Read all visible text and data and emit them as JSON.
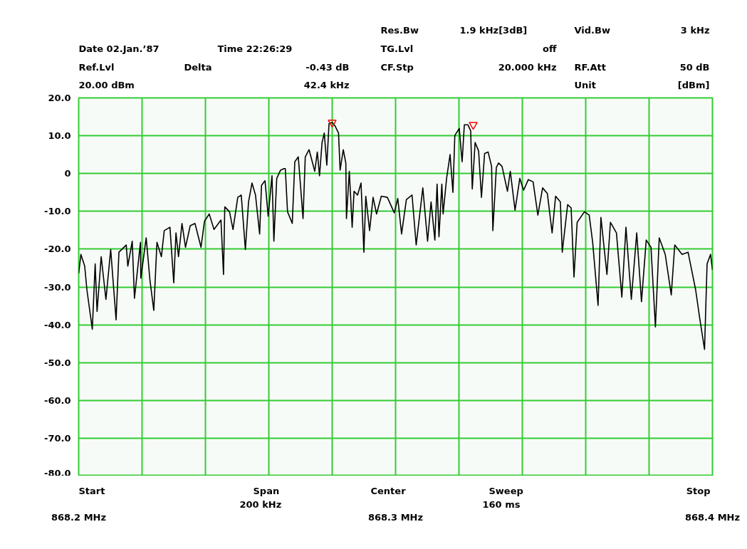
{
  "chart_data": {
    "type": "line",
    "xlim": [
      868.2,
      868.4
    ],
    "xticks": [
      {
        "value": 868.2,
        "label": "868.2 MHz"
      },
      {
        "value": 868.22,
        "label": null
      },
      {
        "value": 868.24,
        "label": null
      },
      {
        "value": 868.26,
        "label": null
      },
      {
        "value": 868.28,
        "label": null
      },
      {
        "value": 868.3,
        "label": "868.3 MHz"
      },
      {
        "value": 868.32,
        "label": null
      },
      {
        "value": 868.34,
        "label": null
      },
      {
        "value": 868.36,
        "label": null
      },
      {
        "value": 868.38,
        "label": null
      },
      {
        "value": 868.4,
        "label": "868.4 MHz"
      }
    ],
    "ylim": [
      -80,
      20
    ],
    "yticks": [
      {
        "value": 20,
        "label": "20.0"
      },
      {
        "value": 10,
        "label": "10.0"
      },
      {
        "value": 0,
        "label": "0"
      },
      {
        "value": -10,
        "label": "-10.0"
      },
      {
        "value": -20,
        "label": "-20.0"
      },
      {
        "value": -30,
        "label": "-30.0"
      },
      {
        "value": -40,
        "label": "-40.0"
      },
      {
        "value": -50,
        "label": "-50.0"
      },
      {
        "value": -60,
        "label": "-60.0"
      },
      {
        "value": -70,
        "label": "-70.0"
      },
      {
        "value": -80,
        "label": "-80.0"
      }
    ],
    "grid": true,
    "series": [
      {
        "color": "#000000",
        "x": [
          868.2,
          868.2007,
          868.2019,
          868.2026,
          868.2043,
          868.2052,
          868.2058,
          868.2071,
          868.2086,
          868.2101,
          868.2118,
          868.2127,
          868.215,
          868.2155,
          868.2169,
          868.2176,
          868.2195,
          868.2196,
          868.2213,
          868.2225,
          868.2237,
          868.2247,
          868.2261,
          868.227,
          868.2288,
          868.23,
          868.2307,
          868.2315,
          868.2326,
          868.2337,
          868.2352,
          868.2367,
          868.2386,
          868.2397,
          868.2412,
          868.2427,
          868.2449,
          868.2457,
          868.2461,
          868.2476,
          868.2487,
          868.2502,
          868.2513,
          868.2526,
          868.2536,
          868.2547,
          868.2558,
          868.2571,
          868.2577,
          868.2588,
          868.2598,
          868.261,
          868.2616,
          868.2625,
          868.2637,
          868.2648,
          868.2652,
          868.2659,
          868.2674,
          868.2682,
          868.2693,
          868.2708,
          868.2715,
          868.2727,
          868.2745,
          868.2753,
          868.276,
          868.2768,
          868.2775,
          868.2783,
          868.279,
          868.28,
          868.2809,
          868.282,
          868.2825,
          868.2835,
          868.2843,
          868.2845,
          868.2854,
          868.2863,
          868.2869,
          868.288,
          868.2891,
          868.29,
          868.2906,
          868.2918,
          868.2929,
          868.294,
          868.2955,
          868.2974,
          868.2996,
          868.3007,
          868.3019,
          868.3034,
          868.3052,
          868.3065,
          868.3086,
          868.3101,
          868.3112,
          868.3124,
          868.3131,
          868.3137,
          868.3146,
          868.315,
          868.3161,
          868.3172,
          868.3181,
          868.3187,
          868.3201,
          868.3206,
          868.321,
          868.3217,
          868.3228,
          868.3237,
          868.3242,
          868.3251,
          868.3262,
          868.3271,
          868.3281,
          868.3292,
          868.3303,
          868.3307,
          868.3318,
          868.3325,
          868.3336,
          868.3353,
          868.3362,
          868.3377,
          868.3392,
          868.3404,
          868.3419,
          868.3434,
          868.3449,
          868.3464,
          868.3479,
          868.3494,
          868.3505,
          868.352,
          868.3526,
          868.3543,
          868.3554,
          868.3563,
          868.3573,
          868.3596,
          868.3611,
          868.3622,
          868.3639,
          868.3648,
          868.3667,
          868.3678,
          868.3697,
          868.3714,
          868.3727,
          868.3744,
          868.3761,
          868.3776,
          868.3791,
          868.3806,
          868.382,
          868.3832,
          868.3851,
          868.387,
          868.3881,
          868.3904,
          868.3923,
          868.3947,
          868.396,
          868.3975,
          868.3983,
          868.3994,
          868.4
        ],
        "values": [
          -26.4,
          -21.4,
          -24.5,
          -30.8,
          -41.2,
          -23.9,
          -36.5,
          -22.0,
          -33.3,
          -20.1,
          -38.7,
          -20.8,
          -18.9,
          -24.5,
          -17.9,
          -33.0,
          -18.2,
          -27.7,
          -17.0,
          -28.3,
          -36.2,
          -18.2,
          -22.0,
          -15.1,
          -14.2,
          -28.9,
          -15.7,
          -22.0,
          -13.2,
          -19.5,
          -13.8,
          -13.2,
          -19.5,
          -12.6,
          -10.7,
          -14.8,
          -12.3,
          -26.7,
          -8.8,
          -10.1,
          -14.8,
          -6.3,
          -5.7,
          -20.1,
          -7.5,
          -2.5,
          -5.7,
          -16.0,
          -3.1,
          -1.9,
          -11.3,
          -0.6,
          -17.9,
          -1.3,
          0.9,
          1.3,
          1.3,
          -10.1,
          -13.2,
          3.1,
          4.4,
          -11.9,
          4.4,
          6.3,
          0.6,
          5.7,
          -0.6,
          8.2,
          10.7,
          2.2,
          13.2,
          13.5,
          12.6,
          10.7,
          0.9,
          6.3,
          2.8,
          -11.9,
          0.6,
          -14.2,
          -4.7,
          -5.7,
          -2.5,
          -20.8,
          -6.0,
          -15.1,
          -6.3,
          -10.7,
          -6.0,
          -6.3,
          -10.4,
          -6.6,
          -16.0,
          -6.9,
          -5.7,
          -18.9,
          -3.8,
          -17.9,
          -7.5,
          -17.6,
          -2.8,
          -16.7,
          -2.8,
          -10.7,
          -1.3,
          5.0,
          -5.0,
          10.1,
          11.9,
          6.9,
          3.1,
          12.9,
          12.9,
          11.3,
          -4.1,
          8.2,
          6.0,
          -6.3,
          5.3,
          5.7,
          1.9,
          -15.1,
          1.6,
          2.8,
          1.9,
          -4.7,
          0.6,
          -9.7,
          -1.3,
          -4.4,
          -1.6,
          -2.2,
          -11.0,
          -3.8,
          -5.3,
          -15.7,
          -6.0,
          -7.5,
          -20.8,
          -8.2,
          -9.1,
          -27.4,
          -12.9,
          -10.1,
          -11.0,
          -18.2,
          -34.9,
          -11.6,
          -26.7,
          -12.9,
          -15.7,
          -32.7,
          -14.2,
          -33.3,
          -15.7,
          -33.9,
          -17.6,
          -19.5,
          -40.6,
          -17.0,
          -21.4,
          -32.1,
          -18.9,
          -21.4,
          -20.8,
          -30.8,
          -38.4,
          -46.5,
          -23.9,
          -21.4,
          -25.5
        ]
      },
      {
        "type": "scatter",
        "color": "#ff0000",
        "marker": "triangle",
        "x": [
          868.28,
          868.3245
        ],
        "values": [
          13.5,
          12.9
        ]
      }
    ],
    "annotations": [
      "Date 02.Jan.’87",
      "Time 22:26:29",
      "Ref.Lvl",
      "Delta",
      "-0.43 dB",
      "20.00 dBm",
      "42.4 kHz",
      "Res.Bw",
      "1.9 kHz[3dB]",
      "TG.Lvl",
      "off",
      "CF.Stp",
      "20.000 kHz",
      "Vid.Bw",
      "3 kHz",
      "RF.Att",
      "50 dB",
      "Unit",
      "[dBm]",
      "Start",
      "Span",
      "200 kHz",
      "Center",
      "Sweep",
      "160 ms",
      "Stop"
    ]
  }
}
